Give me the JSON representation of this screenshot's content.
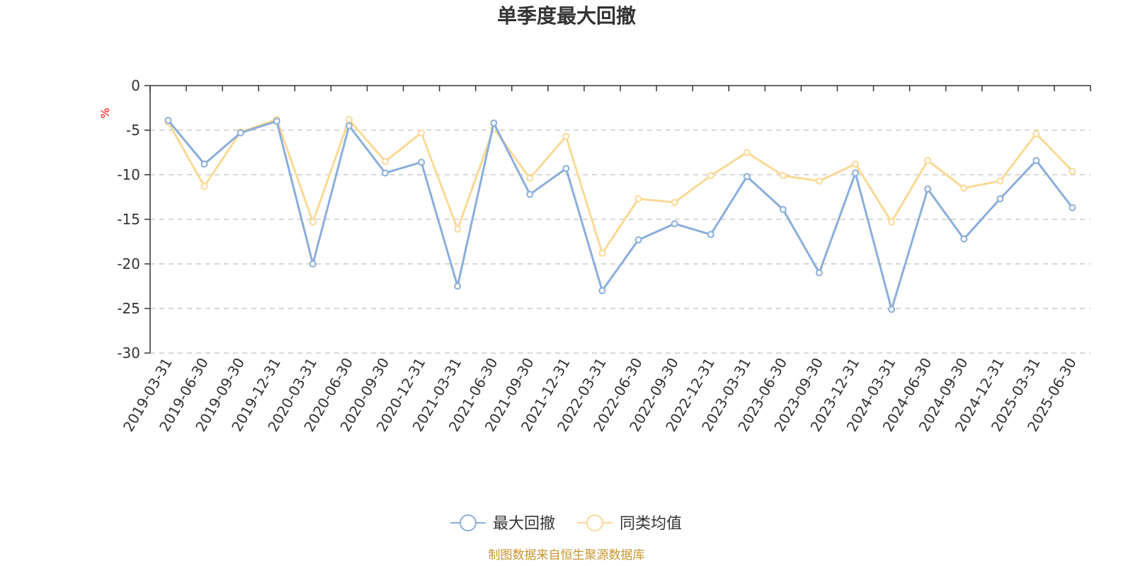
{
  "chart_data": {
    "type": "line",
    "title": "单季度最大回撤",
    "ylabel": "%",
    "ylim": [
      -30,
      0
    ],
    "yticks": [
      0,
      -5,
      -10,
      -15,
      -20,
      -25,
      -30
    ],
    "grid": true,
    "legend_position": "bottom",
    "categories": [
      "2019-03-31",
      "2019-06-30",
      "2019-09-30",
      "2019-12-31",
      "2020-03-31",
      "2020-06-30",
      "2020-09-30",
      "2020-12-31",
      "2021-03-31",
      "2021-06-30",
      "2021-09-30",
      "2021-12-31",
      "2022-03-31",
      "2022-06-30",
      "2022-09-30",
      "2022-12-31",
      "2023-03-31",
      "2023-06-30",
      "2023-09-30",
      "2023-12-31",
      "2024-03-31",
      "2024-06-30",
      "2024-09-30",
      "2024-12-31",
      "2025-03-31",
      "2025-06-30"
    ],
    "series": [
      {
        "name": "最大回撤",
        "color": "#8aaedc",
        "values": [
          -3.9,
          -8.8,
          -5.3,
          -4.0,
          -20.0,
          -4.5,
          -9.8,
          -8.6,
          -22.5,
          -4.2,
          -12.2,
          -9.3,
          -23.0,
          -17.3,
          -15.5,
          -16.7,
          -10.2,
          -13.9,
          -21.0,
          -9.8,
          -25.1,
          -11.6,
          -17.2,
          -12.7,
          -8.4,
          -13.7
        ]
      },
      {
        "name": "同类均值",
        "color": "#fbd994",
        "values": [
          -4.1,
          -11.3,
          -5.2,
          -3.8,
          -15.3,
          -3.8,
          -8.5,
          -5.3,
          -16.1,
          -4.8,
          -10.4,
          -5.7,
          -18.8,
          -12.7,
          -13.1,
          -10.1,
          -7.5,
          -10.1,
          -10.7,
          -8.8,
          -15.3,
          -8.4,
          -11.5,
          -10.7,
          -5.4,
          -9.6
        ]
      }
    ]
  },
  "footer": {
    "source": "制图数据来自恒生聚源数据库"
  }
}
